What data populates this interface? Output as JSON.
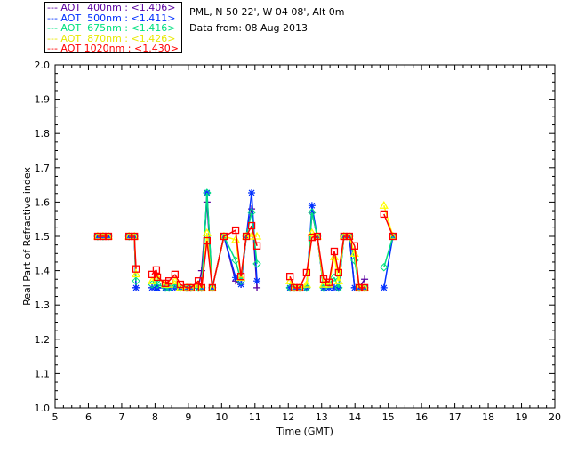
{
  "chart_data": {
    "type": "scatter",
    "title": "",
    "header_lines": [
      "PML, N 50 22', W 04 08', Alt 0m",
      "Data from: 08 Aug 2013"
    ],
    "xlabel": "Time (GMT)",
    "ylabel": "Real Part of Refractive index",
    "xlim": [
      5,
      20
    ],
    "ylim": [
      1.0,
      2.0
    ],
    "xticks": [
      "5",
      "6",
      "7",
      "8",
      "9",
      "10",
      "11",
      "12",
      "13",
      "14",
      "15",
      "16",
      "17",
      "18",
      "19",
      "20"
    ],
    "yticks": [
      "1.0",
      "1.1",
      "1.2",
      "1.3",
      "1.4",
      "1.5",
      "1.6",
      "1.7",
      "1.8",
      "1.9",
      "2.0"
    ],
    "legend_position": "top-left-outside",
    "x": [
      6.28,
      6.44,
      6.6,
      7.22,
      7.38,
      7.43,
      7.91,
      8.04,
      8.07,
      8.31,
      8.42,
      8.6,
      8.76,
      8.95,
      9.08,
      9.3,
      9.4,
      9.56,
      9.72,
      10.07,
      10.42,
      10.58,
      10.74,
      10.9,
      11.06,
      12.05,
      12.18,
      12.34,
      12.55,
      12.71,
      12.87,
      13.06,
      13.22,
      13.38,
      13.51,
      13.67,
      13.83,
      13.99,
      14.13,
      14.29,
      14.87,
      15.14
    ],
    "series": [
      {
        "name": "AOT  400nm : <1.406>",
        "color": "#5a00a0",
        "marker": "plus",
        "values": [
          1.5,
          1.5,
          1.5,
          1.5,
          1.5,
          1.35,
          1.35,
          1.35,
          1.35,
          1.35,
          1.35,
          1.35,
          1.35,
          1.35,
          1.35,
          1.35,
          1.4,
          1.6,
          1.35,
          1.5,
          1.37,
          1.36,
          1.5,
          1.58,
          1.35,
          1.35,
          1.35,
          1.35,
          1.35,
          1.57,
          1.5,
          1.35,
          1.35,
          1.35,
          1.35,
          1.5,
          1.5,
          1.35,
          1.35,
          1.375,
          null,
          1.5
        ]
      },
      {
        "name": "AOT  500nm : <1.411>",
        "color": "#0030ff",
        "marker": "star",
        "values": [
          1.5,
          1.5,
          1.5,
          1.5,
          1.5,
          1.35,
          1.35,
          1.35,
          1.35,
          1.35,
          1.35,
          1.35,
          1.35,
          1.35,
          1.35,
          1.35,
          1.35,
          1.627,
          1.35,
          1.5,
          1.38,
          1.36,
          1.5,
          1.627,
          1.37,
          1.35,
          1.35,
          1.35,
          1.35,
          1.59,
          1.5,
          1.35,
          1.35,
          1.35,
          1.35,
          1.5,
          1.5,
          1.35,
          1.35,
          1.35,
          1.35,
          1.5
        ]
      },
      {
        "name": "AOT  675nm : <1.416>",
        "color": "#00e080",
        "marker": "diamond",
        "values": [
          1.5,
          1.5,
          1.5,
          1.5,
          1.5,
          1.37,
          1.36,
          1.37,
          1.36,
          1.35,
          1.35,
          1.36,
          1.35,
          1.35,
          1.35,
          1.35,
          1.35,
          1.627,
          1.35,
          1.5,
          1.43,
          1.37,
          1.5,
          1.57,
          1.42,
          1.35,
          1.35,
          1.35,
          1.35,
          1.57,
          1.5,
          1.35,
          1.36,
          1.38,
          1.35,
          1.5,
          1.5,
          1.43,
          1.35,
          1.35,
          1.41,
          1.5
        ]
      },
      {
        "name": "AOT  870nm : <1.426>",
        "color": "#ffff00",
        "marker": "triangle",
        "values": [
          1.5,
          1.5,
          1.5,
          1.5,
          1.5,
          1.39,
          1.37,
          1.38,
          1.38,
          1.36,
          1.36,
          1.37,
          1.35,
          1.35,
          1.35,
          1.36,
          1.35,
          1.51,
          1.35,
          1.5,
          1.49,
          1.38,
          1.5,
          1.5,
          1.5,
          1.37,
          1.35,
          1.35,
          1.36,
          1.51,
          1.5,
          1.36,
          1.36,
          1.44,
          1.37,
          1.5,
          1.5,
          1.45,
          1.35,
          1.35,
          1.59,
          1.5
        ]
      },
      {
        "name": "AOT 1020nm : <1.430>",
        "color": "#ff0000",
        "marker": "square",
        "values": [
          1.5,
          1.5,
          1.5,
          1.5,
          1.5,
          1.405,
          1.389,
          1.402,
          1.381,
          1.363,
          1.37,
          1.389,
          1.36,
          1.35,
          1.35,
          1.37,
          1.35,
          1.487,
          1.35,
          1.5,
          1.518,
          1.383,
          1.5,
          1.531,
          1.472,
          1.383,
          1.35,
          1.35,
          1.394,
          1.497,
          1.5,
          1.376,
          1.366,
          1.456,
          1.394,
          1.5,
          1.5,
          1.472,
          1.35,
          1.35,
          1.565,
          1.5
        ]
      }
    ]
  }
}
